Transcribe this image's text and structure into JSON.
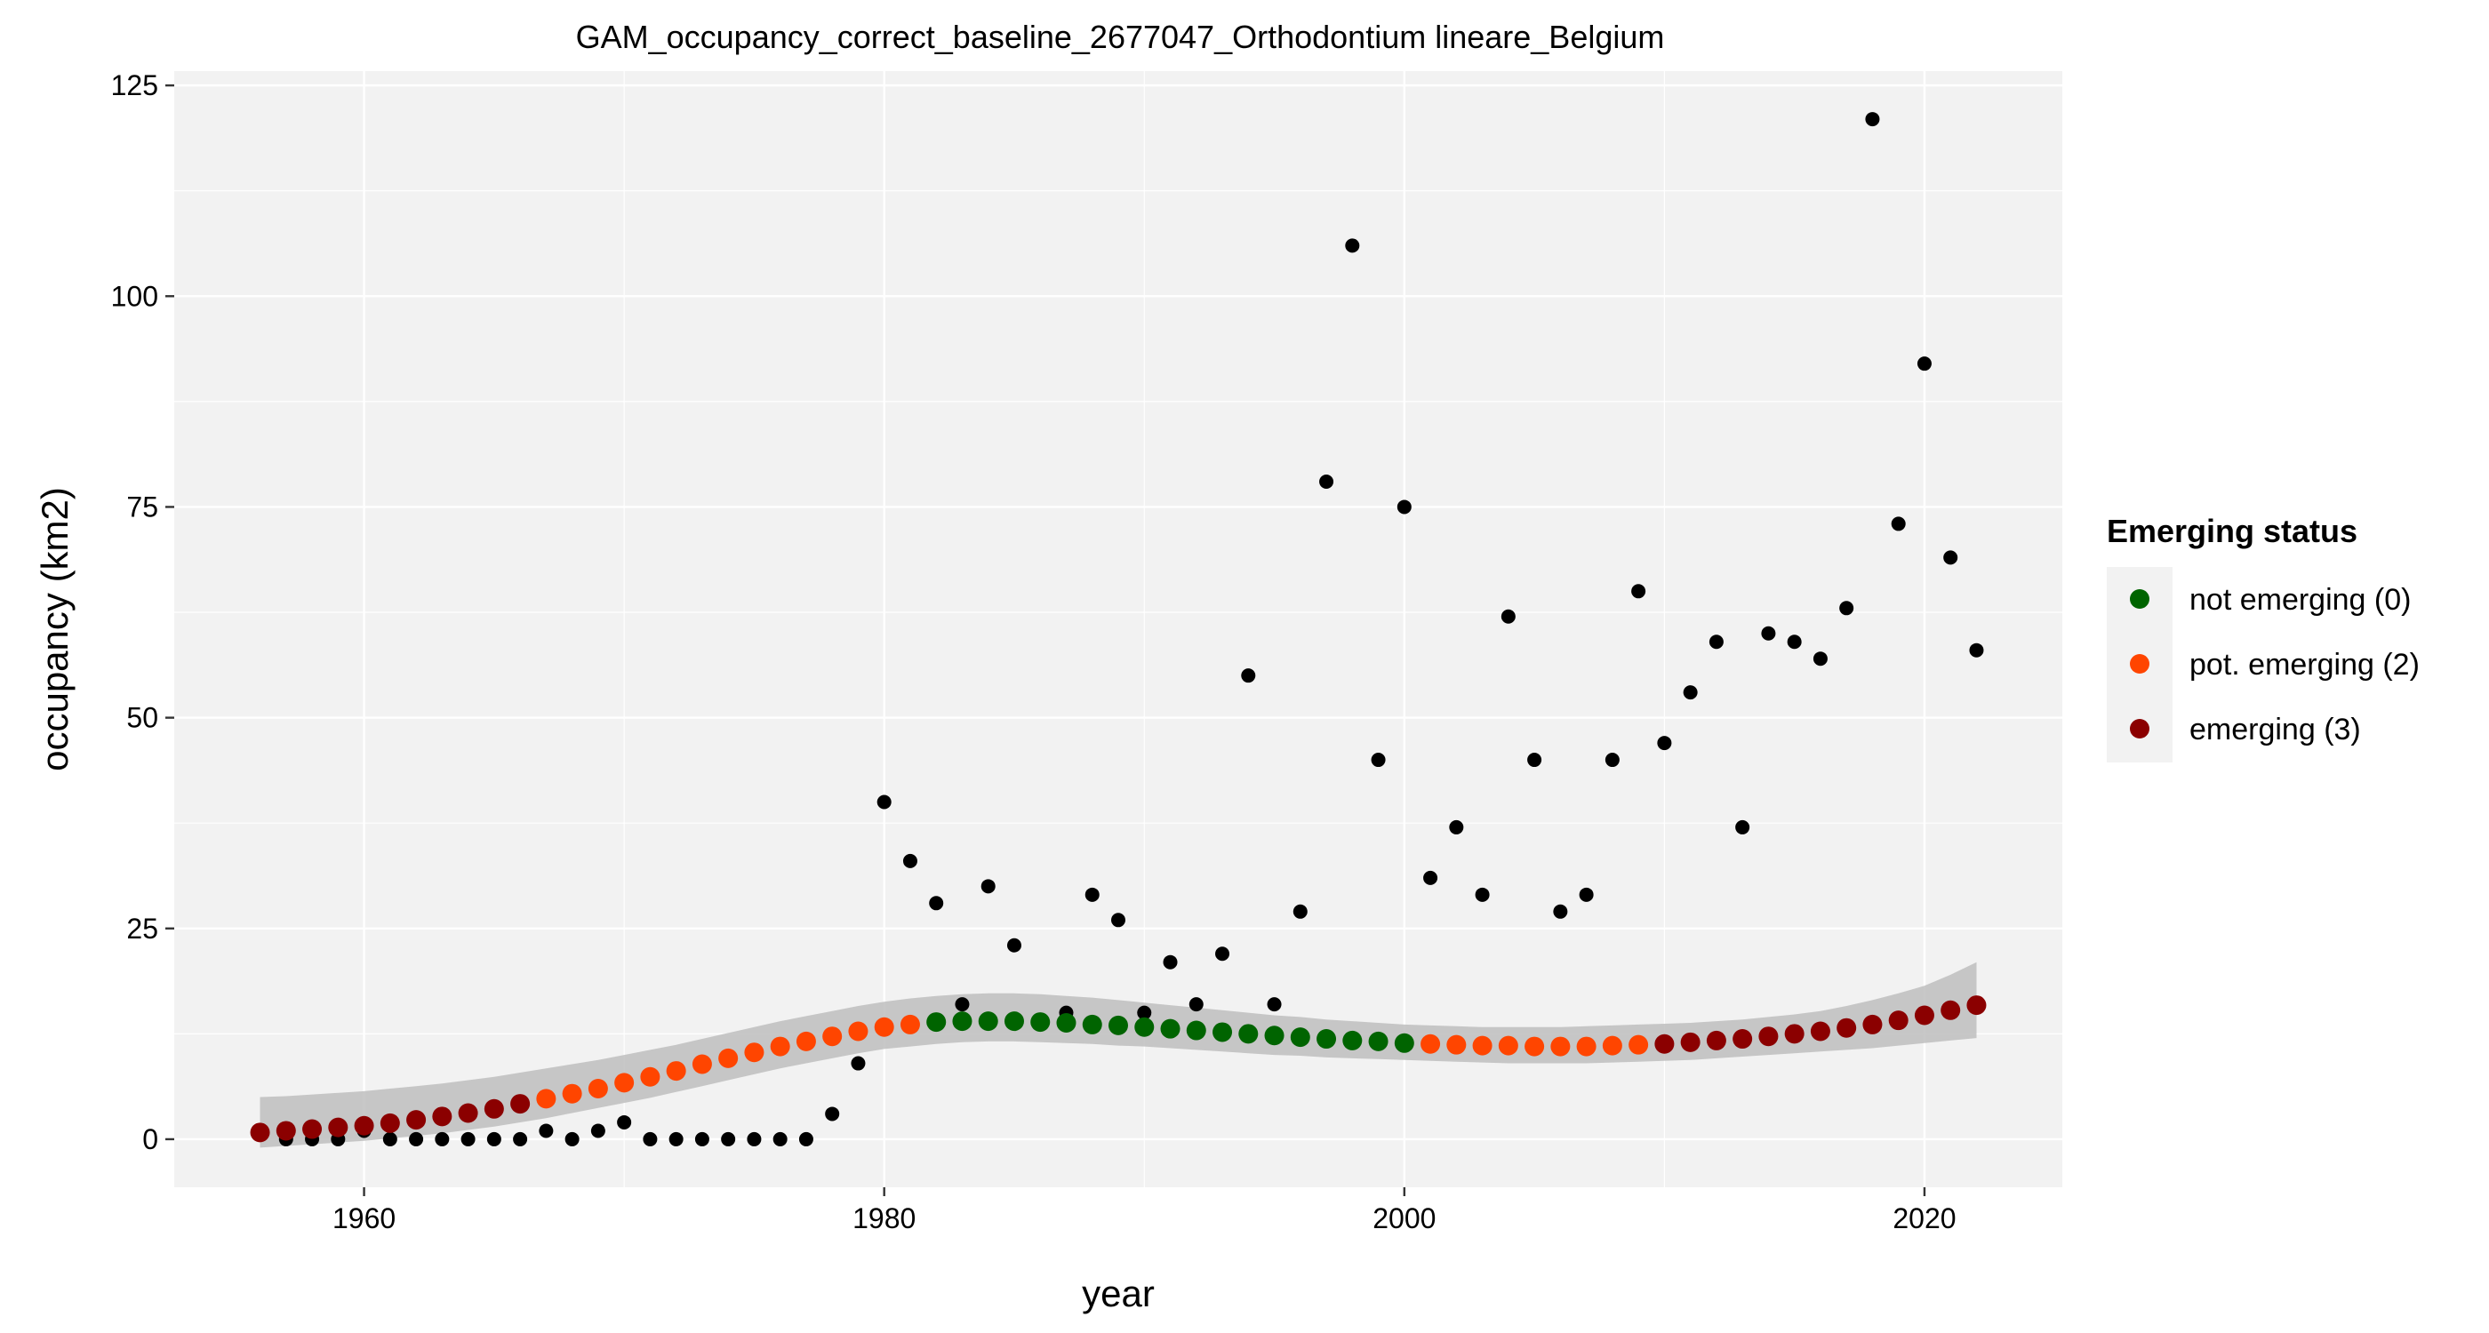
{
  "chart_data": {
    "type": "scatter",
    "title": "GAM_occupancy_correct_baseline_2677047_Orthodontium lineare_Belgium",
    "xlabel": "year",
    "ylabel": "occupancy (km2)",
    "xlim": [
      1952.7,
      2025.3
    ],
    "ylim": [
      -5.7,
      126.7
    ],
    "x_ticks": [
      1960,
      1980,
      2000,
      2020
    ],
    "y_ticks": [
      0,
      25,
      50,
      75,
      100,
      125
    ],
    "grid": true,
    "legend": {
      "title": "Emerging status",
      "position": "right",
      "entries": [
        {
          "label": "not emerging (0)",
          "color": "#006400"
        },
        {
          "label": "pot. emerging (2)",
          "color": "#FF4500"
        },
        {
          "label": "emerging (3)",
          "color": "#8B0000"
        }
      ]
    },
    "observed": {
      "color": "#000000",
      "x": [
        1956,
        1957,
        1958,
        1959,
        1960,
        1961,
        1962,
        1963,
        1964,
        1965,
        1966,
        1967,
        1968,
        1969,
        1970,
        1971,
        1972,
        1973,
        1974,
        1975,
        1976,
        1977,
        1978,
        1979,
        1980,
        1981,
        1982,
        1983,
        1984,
        1985,
        1986,
        1987,
        1988,
        1989,
        1990,
        1991,
        1992,
        1993,
        1994,
        1995,
        1996,
        1997,
        1998,
        1999,
        2000,
        2001,
        2002,
        2003,
        2004,
        2005,
        2006,
        2007,
        2008,
        2009,
        2010,
        2011,
        2012,
        2013,
        2014,
        2015,
        2016,
        2017,
        2018,
        2019,
        2020,
        2021,
        2022
      ],
      "y": [
        1,
        0,
        0,
        0,
        1,
        0,
        0,
        0,
        0,
        0,
        0,
        1,
        0,
        1,
        2,
        0,
        0,
        0,
        0,
        0,
        0,
        0,
        3,
        9,
        40,
        33,
        28,
        16,
        30,
        23,
        14,
        15,
        29,
        26,
        15,
        21,
        16,
        22,
        55,
        16,
        27,
        78,
        106,
        45,
        75,
        31,
        37,
        29,
        62,
        45,
        27,
        29,
        45,
        65,
        47,
        53,
        59,
        37,
        60,
        59,
        57,
        63,
        121,
        73,
        92,
        69,
        58
      ]
    },
    "fit": {
      "x": [
        1956,
        1957,
        1958,
        1959,
        1960,
        1961,
        1962,
        1963,
        1964,
        1965,
        1966,
        1967,
        1968,
        1969,
        1970,
        1971,
        1972,
        1973,
        1974,
        1975,
        1976,
        1977,
        1978,
        1979,
        1980,
        1981,
        1982,
        1983,
        1984,
        1985,
        1986,
        1987,
        1988,
        1989,
        1990,
        1991,
        1992,
        1993,
        1994,
        1995,
        1996,
        1997,
        1998,
        1999,
        2000,
        2001,
        2002,
        2003,
        2004,
        2005,
        2006,
        2007,
        2008,
        2009,
        2010,
        2011,
        2012,
        2013,
        2014,
        2015,
        2016,
        2017,
        2018,
        2019,
        2020,
        2021,
        2022
      ],
      "y": [
        0.8,
        1.0,
        1.2,
        1.4,
        1.6,
        1.9,
        2.3,
        2.7,
        3.1,
        3.6,
        4.2,
        4.8,
        5.4,
        6.0,
        6.7,
        7.4,
        8.1,
        8.9,
        9.6,
        10.3,
        11.0,
        11.6,
        12.2,
        12.8,
        13.3,
        13.6,
        13.9,
        14.0,
        14.0,
        14.0,
        13.9,
        13.8,
        13.6,
        13.5,
        13.3,
        13.1,
        12.9,
        12.7,
        12.5,
        12.3,
        12.1,
        11.9,
        11.7,
        11.6,
        11.4,
        11.3,
        11.2,
        11.1,
        11.1,
        11.0,
        11.0,
        11.0,
        11.1,
        11.2,
        11.3,
        11.5,
        11.7,
        11.9,
        12.2,
        12.5,
        12.8,
        13.2,
        13.6,
        14.1,
        14.7,
        15.3,
        15.9
      ],
      "status": [
        3,
        3,
        3,
        3,
        3,
        3,
        3,
        3,
        3,
        3,
        3,
        2,
        2,
        2,
        2,
        2,
        2,
        2,
        2,
        2,
        2,
        2,
        2,
        2,
        2,
        2,
        0,
        0,
        0,
        0,
        0,
        0,
        0,
        0,
        0,
        0,
        0,
        0,
        0,
        0,
        0,
        0,
        0,
        0,
        0,
        2,
        2,
        2,
        2,
        2,
        2,
        2,
        2,
        2,
        3,
        3,
        3,
        3,
        3,
        3,
        3,
        3,
        3,
        3,
        3,
        3,
        3
      ],
      "lower": [
        -1.0,
        -0.8,
        -0.6,
        -0.4,
        -0.2,
        0.1,
        0.4,
        0.7,
        1.1,
        1.5,
        2.0,
        2.5,
        3.1,
        3.7,
        4.3,
        4.9,
        5.6,
        6.3,
        7.0,
        7.7,
        8.4,
        9.0,
        9.6,
        10.2,
        10.7,
        11.0,
        11.3,
        11.5,
        11.6,
        11.6,
        11.5,
        11.4,
        11.3,
        11.1,
        11.0,
        10.8,
        10.6,
        10.4,
        10.2,
        10.0,
        9.9,
        9.7,
        9.6,
        9.5,
        9.4,
        9.3,
        9.2,
        9.1,
        9.0,
        9.0,
        9.0,
        9.0,
        9.1,
        9.2,
        9.3,
        9.4,
        9.6,
        9.8,
        10.0,
        10.2,
        10.4,
        10.6,
        10.8,
        11.1,
        11.4,
        11.7,
        12.0
      ],
      "upper": [
        5.0,
        5.1,
        5.3,
        5.5,
        5.7,
        6.0,
        6.3,
        6.6,
        7.0,
        7.4,
        7.9,
        8.4,
        8.9,
        9.4,
        10.0,
        10.6,
        11.2,
        11.9,
        12.6,
        13.3,
        14.0,
        14.6,
        15.2,
        15.8,
        16.3,
        16.7,
        17.0,
        17.2,
        17.3,
        17.3,
        17.2,
        17.0,
        16.8,
        16.5,
        16.2,
        15.9,
        15.6,
        15.3,
        15.0,
        14.7,
        14.5,
        14.2,
        14.0,
        13.8,
        13.6,
        13.5,
        13.4,
        13.3,
        13.3,
        13.3,
        13.3,
        13.4,
        13.5,
        13.6,
        13.7,
        13.8,
        14.0,
        14.2,
        14.5,
        14.8,
        15.2,
        15.8,
        16.5,
        17.3,
        18.2,
        19.5,
        21.0
      ]
    }
  }
}
